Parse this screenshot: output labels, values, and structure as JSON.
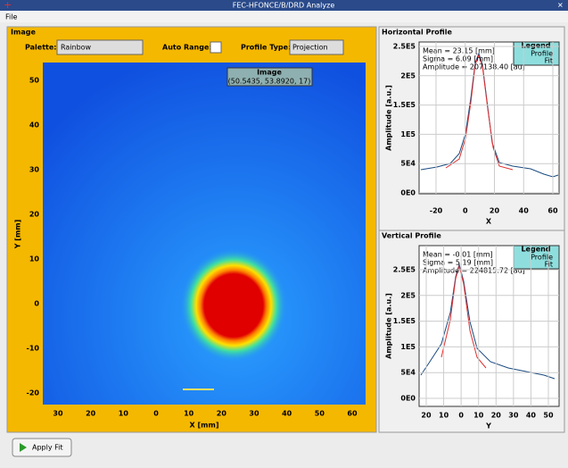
{
  "window": {
    "title": "FEC-HFONCE/B/DRD Analyze",
    "menu": [
      "File"
    ]
  },
  "image_panel": {
    "title": "Image",
    "palette_label": "Palette:",
    "palette_value": "Rainbow",
    "auto_range_label": "Auto Range:",
    "profile_type_label": "Profile Type:",
    "profile_type_value": "Projection",
    "tooltip": {
      "title": "Image",
      "value": "(50.5435, 53.8920, 17)"
    },
    "y_label": "Y [mm]",
    "x_label": "X [mm]",
    "yticks": [
      "50",
      "40",
      "30",
      "20",
      "10",
      "0",
      "-10",
      "-20"
    ],
    "xticks": [
      "30",
      "20",
      "10",
      "0",
      "10",
      "20",
      "30",
      "40",
      "50",
      "60"
    ]
  },
  "horizontal_profile": {
    "title": "Horizontal Profile",
    "y_label": "Amplitude [a.u.]",
    "x_label": "X",
    "yticks": [
      "2.5E5",
      "2E5",
      "1.5E5",
      "1E5",
      "5E4",
      "0E0"
    ],
    "xticks": [
      "-20",
      "0",
      "20",
      "40",
      "60"
    ],
    "stats": [
      "Mean = 23.15 [mm]",
      "Sigma = 6.09 [mm]",
      "Amplitude = 207138.40 [au]"
    ],
    "legend": {
      "title": "Legend",
      "items": [
        "Profile",
        "Fit"
      ]
    }
  },
  "vertical_profile": {
    "title": "Vertical Profile",
    "y_label": "Amplitude [a.u.]",
    "x_label": "Y",
    "yticks": [
      "2.5E5",
      "2E5",
      "1.5E5",
      "1E5",
      "5E4",
      "0E0"
    ],
    "xticks": [
      "20",
      "10",
      "0",
      "10",
      "20",
      "30",
      "40",
      "50"
    ],
    "stats": [
      "Mean = -0.01 [mm]",
      "Sigma = 5.19 [mm]",
      "Amplitude = 224815.72 [au]"
    ],
    "legend": {
      "title": "Legend",
      "items": [
        "Profile",
        "Fit"
      ]
    }
  },
  "button": {
    "label": "Apply Fit"
  }
}
